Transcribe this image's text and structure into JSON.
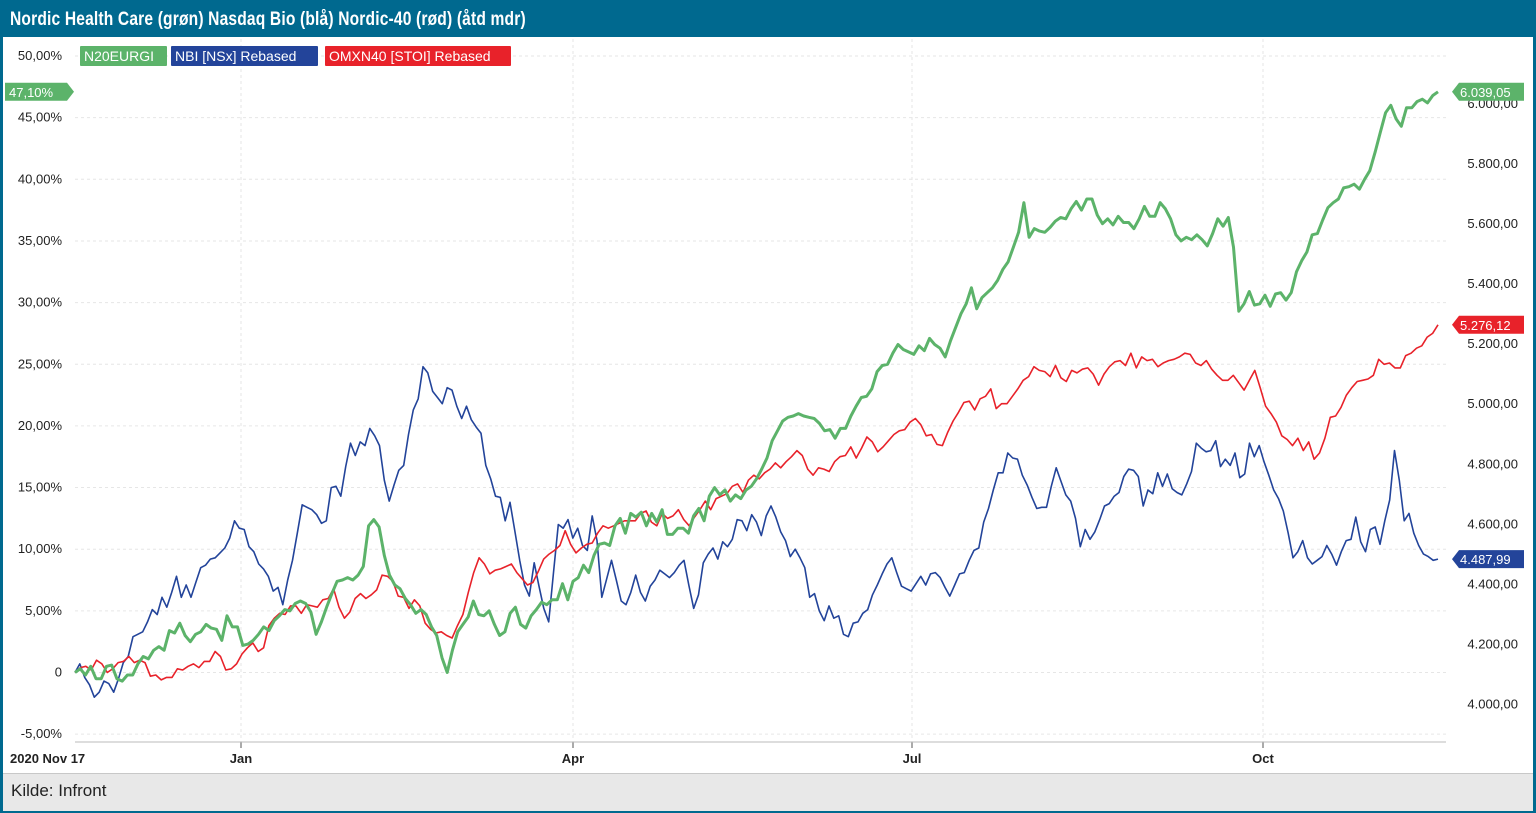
{
  "title": "Nordic Health Care (grøn) Nasdaq Bio (blå) Nordic-40 (rød) (åtd mdr)",
  "source": "Kilde: Infront",
  "chart_data": {
    "type": "line",
    "start_label": "2020 Nov 17",
    "x_month_labels": [
      "Jan",
      "Apr",
      "Jul",
      "Oct"
    ],
    "left_axis": {
      "ticks": [
        "-5,00%",
        "0",
        "5,00%",
        "10,00%",
        "15,00%",
        "20,00%",
        "25,00%",
        "30,00%",
        "35,00%",
        "40,00%",
        "45,00%",
        "50,00%"
      ],
      "ylim": [
        -5,
        50
      ]
    },
    "right_axis": {
      "ticks": [
        "4.000,00",
        "4.200,00",
        "4.400,00",
        "4.600,00",
        "4.800,00",
        "5.000,00",
        "5.200,00",
        "5.400,00",
        "5.600,00",
        "5.800,00",
        "6.000,00"
      ],
      "ylim": [
        4000,
        6000
      ]
    },
    "grid": true,
    "legend_position": "top-left",
    "series": [
      {
        "name": "N20EURGI",
        "color": "#5cb36a",
        "last_value_label": "6.039,05",
        "pct_label": "47,10%",
        "values_pct": [
          0.0,
          0.3,
          -0.2,
          0.5,
          -0.5,
          -0.5,
          0.5,
          0.6,
          -0.5,
          -0.7,
          -0.2,
          -0.2,
          0.7,
          1.3,
          1.1,
          1.8,
          2.1,
          1.8,
          3.4,
          3.2,
          4.0,
          3.0,
          2.5,
          3.1,
          3.3,
          3.9,
          3.6,
          3.5,
          2.6,
          4.6,
          3.7,
          3.7,
          2.2,
          2.3,
          2.6,
          3.1,
          3.7,
          3.4,
          4.2,
          4.6,
          5.1,
          5.0,
          5.6,
          5.8,
          5.6,
          4.9,
          3.1,
          4.1,
          5.3,
          6.4,
          7.4,
          7.5,
          7.7,
          7.5,
          7.9,
          8.6,
          11.9,
          12.4,
          11.8,
          9.5,
          7.9,
          7.1,
          6.8,
          6.0,
          5.5,
          4.8,
          5.1,
          4.7,
          3.7,
          3.0,
          1.2,
          0.0,
          1.8,
          3.3,
          3.9,
          4.5,
          5.8,
          4.7,
          4.6,
          5.0,
          3.9,
          3.0,
          3.3,
          4.8,
          5.3,
          3.9,
          3.6,
          4.6,
          5.1,
          5.7,
          5.5,
          5.9,
          5.9,
          7.2,
          5.9,
          7.4,
          7.7,
          8.7,
          8.1,
          9.5,
          10.4,
          10.5,
          10.3,
          11.9,
          12.5,
          11.3,
          12.9,
          12.6,
          13.0,
          11.9,
          12.9,
          12.2,
          13.2,
          11.2,
          11.2,
          11.7,
          11.7,
          11.3,
          12.7,
          13.3,
          12.3,
          14.3,
          15.0,
          14.4,
          14.8,
          13.9,
          14.4,
          14.1,
          14.8,
          15.1,
          15.7,
          16.5,
          17.4,
          18.8,
          19.6,
          20.4,
          20.7,
          20.8,
          21.0,
          20.8,
          20.7,
          20.6,
          20.2,
          19.6,
          19.7,
          19.0,
          19.8,
          19.8,
          20.8,
          21.6,
          22.3,
          22.4,
          23.0,
          24.4,
          24.9,
          25.0,
          25.9,
          26.6,
          26.2,
          26.0,
          25.8,
          26.5,
          26.1,
          27.1,
          26.6,
          26.3,
          25.6,
          26.9,
          28.0,
          29.1,
          29.9,
          31.2,
          29.5,
          30.4,
          30.8,
          31.2,
          31.8,
          32.7,
          33.3,
          34.5,
          35.7,
          38.1,
          35.3,
          36.0,
          35.8,
          35.7,
          36.1,
          36.6,
          36.9,
          36.8,
          37.6,
          38.2,
          37.5,
          38.4,
          38.4,
          37.1,
          36.4,
          36.8,
          36.3,
          37.0,
          36.5,
          36.5,
          36.0,
          36.8,
          37.8,
          37.0,
          37.0,
          38.1,
          37.6,
          36.8,
          35.5,
          35.0,
          35.3,
          35.1,
          35.5,
          35.1,
          34.6,
          35.6,
          36.8,
          36.2,
          36.9,
          34.5,
          29.3,
          29.9,
          30.9,
          29.8,
          29.9,
          30.6,
          29.7,
          30.7,
          30.8,
          30.2,
          30.8,
          32.5,
          33.4,
          34.1,
          35.5,
          35.6,
          36.7,
          37.7,
          38.1,
          38.4,
          39.3,
          39.4,
          39.6,
          39.2,
          40.0,
          40.7,
          42.2,
          43.8,
          45.4,
          46.0,
          44.9,
          44.3,
          45.8,
          45.8,
          46.3,
          46.5,
          46.2,
          46.8,
          47.1
        ]
      },
      {
        "name": "NBI [NSx] Rebased",
        "color": "#23449a",
        "last_value_label": "4.487,99",
        "values_pct": [
          0.0,
          0.7,
          -0.4,
          -1.0,
          -2.0,
          -1.6,
          -0.7,
          -0.9,
          -1.6,
          -0.5,
          0.8,
          1.3,
          2.9,
          3.1,
          3.3,
          4.1,
          5.1,
          4.7,
          6.1,
          5.3,
          6.5,
          7.8,
          6.1,
          7.1,
          6.1,
          7.3,
          8.5,
          8.7,
          9.2,
          9.3,
          9.7,
          10.1,
          10.9,
          12.3,
          11.7,
          11.6,
          10.2,
          9.8,
          8.8,
          8.4,
          7.8,
          6.6,
          6.9,
          5.5,
          7.5,
          9.1,
          11.3,
          13.6,
          13.4,
          13.2,
          12.8,
          12.1,
          12.3,
          15.0,
          15.1,
          14.3,
          16.7,
          18.6,
          17.6,
          18.7,
          18.4,
          19.8,
          19.2,
          18.4,
          15.6,
          13.9,
          15.2,
          16.4,
          16.8,
          19.3,
          21.3,
          22.2,
          24.8,
          24.3,
          22.8,
          22.3,
          21.8,
          23.1,
          22.9,
          21.6,
          20.6,
          21.6,
          20.5,
          19.9,
          19.4,
          16.8,
          15.7,
          14.3,
          14.2,
          12.3,
          13.8,
          11.5,
          9.1,
          7.1,
          6.2,
          8.9,
          7.0,
          5.2,
          4.1,
          8.1,
          12.0,
          11.7,
          12.4,
          10.9,
          11.7,
          10.3,
          9.9,
          12.7,
          10.7,
          6.1,
          7.6,
          9.1,
          7.5,
          5.8,
          5.5,
          6.5,
          7.9,
          6.5,
          5.8,
          7.0,
          7.5,
          8.3,
          8.0,
          7.7,
          8.1,
          8.7,
          9.1,
          7.1,
          5.2,
          6.3,
          8.9,
          9.6,
          10.1,
          9.2,
          10.6,
          10.2,
          10.8,
          12.4,
          12.3,
          11.5,
          12.8,
          12.2,
          11.1,
          12.7,
          13.5,
          12.6,
          11.4,
          10.7,
          9.4,
          10.0,
          9.3,
          8.5,
          6.1,
          6.4,
          5.0,
          4.2,
          5.4,
          4.4,
          4.6,
          3.1,
          2.9,
          4.0,
          4.1,
          4.8,
          5.1,
          6.3,
          7.1,
          8.0,
          8.8,
          9.3,
          8.1,
          7.0,
          6.8,
          6.6,
          7.2,
          7.8,
          7.1,
          8.0,
          8.1,
          7.7,
          6.9,
          6.2,
          7.1,
          8.0,
          8.1,
          9.1,
          9.9,
          10.1,
          12.2,
          13.3,
          14.8,
          16.2,
          16.2,
          17.8,
          17.4,
          17.3,
          16.0,
          15.2,
          14.2,
          13.3,
          13.4,
          13.4,
          15.1,
          16.6,
          15.5,
          14.4,
          13.9,
          12.5,
          10.2,
          11.6,
          10.8,
          11.4,
          12.4,
          13.5,
          13.7,
          14.3,
          14.6,
          15.9,
          16.5,
          16.4,
          15.9,
          13.5,
          14.8,
          14.5,
          16.2,
          15.1,
          16.1,
          14.9,
          14.6,
          14.4,
          15.3,
          16.3,
          18.6,
          18.2,
          17.9,
          18.0,
          18.8,
          16.7,
          17.3,
          16.8,
          17.8,
          15.8,
          16.1,
          18.6,
          17.5,
          18.4,
          17.1,
          16.0,
          14.8,
          14.1,
          13.1,
          11.3,
          9.3,
          9.8,
          10.7,
          9.3,
          8.8,
          9.1,
          9.4,
          10.3,
          9.6,
          8.7,
          9.8,
          10.7,
          10.8,
          12.6,
          10.6,
          9.8,
          11.6,
          11.8,
          10.4,
          12.3,
          14.0,
          18.0,
          15.6,
          12.3,
          12.9,
          11.3,
          10.3,
          9.6,
          9.4,
          9.1,
          9.2
        ]
      },
      {
        "name": "OMXN40 [STOI] Rebased",
        "color": "#e8222a",
        "last_value_label": "5.276,12",
        "values_pct": [
          0.0,
          0.4,
          0.5,
          0.2,
          1.0,
          0.7,
          0.0,
          0.3,
          0.8,
          0.9,
          1.3,
          0.8,
          1.0,
          0.8,
          -0.3,
          -0.2,
          -0.6,
          -0.4,
          -0.4,
          0.3,
          0.2,
          0.5,
          0.7,
          0.4,
          0.9,
          0.9,
          1.7,
          1.3,
          0.2,
          0.3,
          0.7,
          1.5,
          2.0,
          2.4,
          1.7,
          2.0,
          3.8,
          4.4,
          4.8,
          4.7,
          5.4,
          5.4,
          4.8,
          5.5,
          5.4,
          5.3,
          5.9,
          6.0,
          6.8,
          5.3,
          4.4,
          4.9,
          6.0,
          6.4,
          6.0,
          6.3,
          6.7,
          7.9,
          7.8,
          7.4,
          6.2,
          6.1,
          5.2,
          5.9,
          5.4,
          4.0,
          3.5,
          3.2,
          3.3,
          3.0,
          2.8,
          3.8,
          4.7,
          6.5,
          8.1,
          9.3,
          8.8,
          8.0,
          8.3,
          8.4,
          8.6,
          8.8,
          8.1,
          7.6,
          7.1,
          7.3,
          8.2,
          9.2,
          9.6,
          9.9,
          10.3,
          11.5,
          10.4,
          9.7,
          10.1,
          10.4,
          10.5,
          11.3,
          11.9,
          11.7,
          11.9,
          12.1,
          12.3,
          12.3,
          12.3,
          12.9,
          13.1,
          12.2,
          11.9,
          12.9,
          12.5,
          12.7,
          13.2,
          12.4,
          11.9,
          12.6,
          13.2,
          13.9,
          13.2,
          14.1,
          14.3,
          14.5,
          15.1,
          15.3,
          14.6,
          15.6,
          16.0,
          15.7,
          16.2,
          16.5,
          17.0,
          16.6,
          17.1,
          17.5,
          18.0,
          17.6,
          16.5,
          16.0,
          16.6,
          16.5,
          16.3,
          17.1,
          17.5,
          17.6,
          18.3,
          17.4,
          18.2,
          19.1,
          18.7,
          17.9,
          18.3,
          18.8,
          19.3,
          19.6,
          19.7,
          20.3,
          20.6,
          20.1,
          19.2,
          19.3,
          18.5,
          18.4,
          19.5,
          20.4,
          21.1,
          21.9,
          22.0,
          21.3,
          22.2,
          22.4,
          23.0,
          21.4,
          21.8,
          21.8,
          22.4,
          23.0,
          23.7,
          24.0,
          24.8,
          24.5,
          24.4,
          24.0,
          24.9,
          23.9,
          23.6,
          24.5,
          24.3,
          24.6,
          24.7,
          24.2,
          23.3,
          24.2,
          24.8,
          25.2,
          25.3,
          24.9,
          25.9,
          24.7,
          25.6,
          25.3,
          25.4,
          24.8,
          25.1,
          25.3,
          25.4,
          25.6,
          25.9,
          25.8,
          25.1,
          24.9,
          25.3,
          24.6,
          24.1,
          23.7,
          23.7,
          24.1,
          23.5,
          22.9,
          23.7,
          24.5,
          23.1,
          21.6,
          21.0,
          20.3,
          19.2,
          18.9,
          18.4,
          19.0,
          18.0,
          18.7,
          17.3,
          17.8,
          19.0,
          20.7,
          20.8,
          21.5,
          22.5,
          23.1,
          23.6,
          23.7,
          23.8,
          24.1,
          25.4,
          25.0,
          25.1,
          24.7,
          24.7,
          25.7,
          25.9,
          26.3,
          26.5,
          27.2,
          27.5,
          28.2
        ]
      }
    ]
  }
}
